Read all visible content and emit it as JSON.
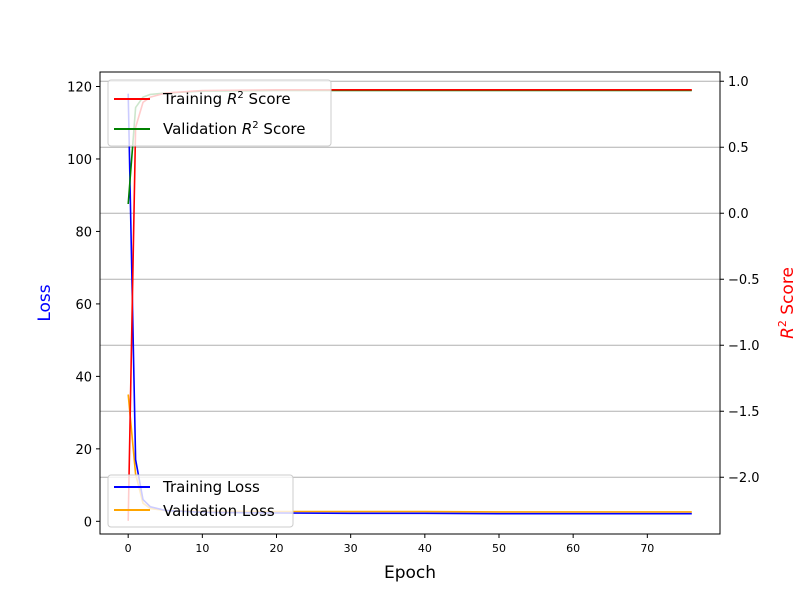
{
  "chart_data": {
    "type": "line",
    "xlabel": "Epoch",
    "ylabel_left": "Loss",
    "ylabel_right": "R² Score",
    "ylabel_right_parts": [
      "R",
      "2",
      " Score"
    ],
    "xlim": [
      -3.8,
      79.8
    ],
    "ylim_left": [
      -3.5,
      124
    ],
    "ylim_right": [
      -2.43,
      1.07
    ],
    "x_ticks": [
      0,
      10,
      20,
      30,
      40,
      50,
      60,
      70
    ],
    "y_ticks_left": [
      0,
      20,
      40,
      60,
      80,
      100,
      120
    ],
    "y_ticks_right": [
      -2.0,
      -1.5,
      -1.0,
      -0.5,
      0.0,
      0.5,
      1.0
    ],
    "y_tick_labels_right": [
      "−2.0",
      "−1.5",
      "−1.0",
      "−0.5",
      "0.0",
      "0.5",
      "1.0"
    ],
    "grid": "horizontal lines at right-axis ticks",
    "colors": {
      "axis_left_label": "#0000ff",
      "axis_right_label": "#ff0000",
      "grid": "#b0b0b0"
    },
    "legend_top": {
      "placement": "upper-left",
      "entries": [
        {
          "series": "training_r2",
          "parts": [
            "Training ",
            "R",
            "2",
            " Score"
          ]
        },
        {
          "series": "validation_r2",
          "parts": [
            "Validation ",
            "R",
            "2",
            " Score"
          ]
        }
      ]
    },
    "legend_bottom": {
      "placement": "lower-left",
      "entries": [
        {
          "series": "training_loss",
          "label": "Training Loss"
        },
        {
          "series": "validation_loss",
          "label": "Validation Loss"
        }
      ]
    },
    "series": [
      {
        "name": "Training Loss",
        "key": "training_loss",
        "axis": "left",
        "color": "#0000ff",
        "x": [
          0,
          1,
          2,
          3,
          5,
          10,
          20,
          30,
          40,
          50,
          60,
          70,
          76
        ],
        "y": [
          118,
          17,
          6,
          4,
          3,
          2.5,
          2.3,
          2.2,
          2.2,
          2.1,
          2.1,
          2.1,
          2.1
        ]
      },
      {
        "name": "Validation Loss",
        "key": "validation_loss",
        "axis": "left",
        "color": "#ffa500",
        "x": [
          0,
          1,
          2,
          3,
          5,
          10,
          20,
          30,
          40,
          50,
          60,
          70,
          76
        ],
        "y": [
          35,
          13,
          5,
          3.5,
          3,
          2.8,
          2.7,
          2.7,
          2.7,
          2.6,
          2.6,
          2.6,
          2.6
        ]
      },
      {
        "name": "Training R² Score",
        "key": "training_r2",
        "axis": "right",
        "color": "#ff0000",
        "x": [
          0,
          1,
          2,
          3,
          5,
          10,
          20,
          30,
          40,
          50,
          60,
          70,
          76
        ],
        "y": [
          -2.33,
          0.65,
          0.84,
          0.88,
          0.91,
          0.93,
          0.935,
          0.935,
          0.935,
          0.935,
          0.935,
          0.935,
          0.935
        ]
      },
      {
        "name": "Validation R² Score",
        "key": "validation_r2",
        "axis": "right",
        "color": "#008000",
        "x": [
          0,
          1,
          2,
          3,
          5,
          10,
          20,
          30,
          40,
          50,
          60,
          70,
          76
        ],
        "y": [
          0.07,
          0.8,
          0.88,
          0.9,
          0.91,
          0.925,
          0.93,
          0.93,
          0.93,
          0.93,
          0.93,
          0.93,
          0.93
        ]
      }
    ]
  }
}
